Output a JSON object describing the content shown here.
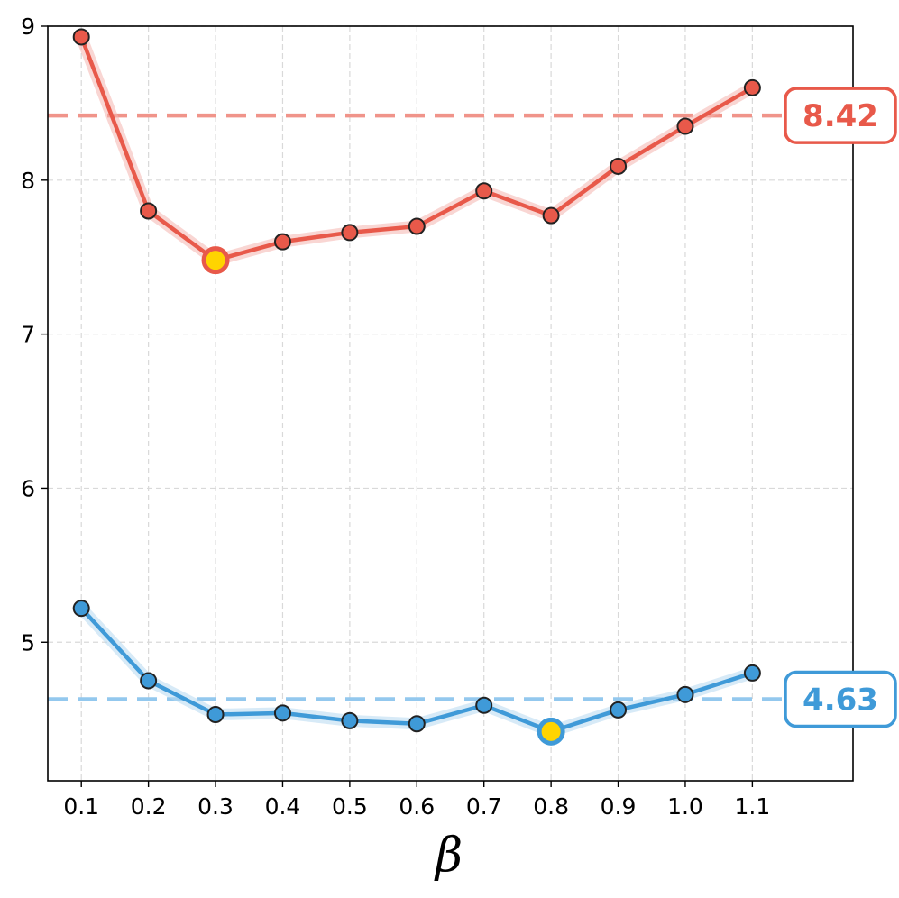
{
  "chart_data": {
    "type": "line",
    "title": "",
    "xlabel": "β",
    "ylabel": "",
    "x": [
      0.1,
      0.2,
      0.3,
      0.4,
      0.5,
      0.6,
      0.7,
      0.8,
      0.9,
      1.0,
      1.1
    ],
    "x_tick_labels": [
      "0.1",
      "0.2",
      "0.3",
      "0.4",
      "0.5",
      "0.6",
      "0.7",
      "0.8",
      "0.9",
      "1.0",
      "1.1"
    ],
    "y_ticks": [
      5,
      6,
      7,
      8,
      9
    ],
    "y_tick_labels": [
      "5",
      "6",
      "7",
      "8",
      "9"
    ],
    "xlim": [
      0.05,
      1.25
    ],
    "ylim": [
      4.1,
      9.0
    ],
    "grid": true,
    "legend": "none",
    "series": [
      {
        "color": "#e8594a",
        "band_color": "#f4b4ae",
        "values": [
          8.93,
          7.8,
          7.48,
          7.6,
          7.66,
          7.7,
          7.93,
          7.77,
          8.09,
          8.35,
          8.6
        ],
        "highlight_x": 0.3,
        "reference_value": 8.42,
        "reference_label": "8.42",
        "reference_color": "#f0948a"
      },
      {
        "color": "#3f9ad8",
        "band_color": "#b7d9f1",
        "values": [
          5.22,
          4.75,
          4.53,
          4.54,
          4.49,
          4.47,
          4.59,
          4.42,
          4.56,
          4.66,
          4.8
        ],
        "highlight_x": 0.8,
        "reference_value": 4.63,
        "reference_label": "4.63",
        "reference_color": "#93c8ee"
      }
    ],
    "highlight_fill": "#ffd400",
    "marker_edge": "#222222"
  }
}
